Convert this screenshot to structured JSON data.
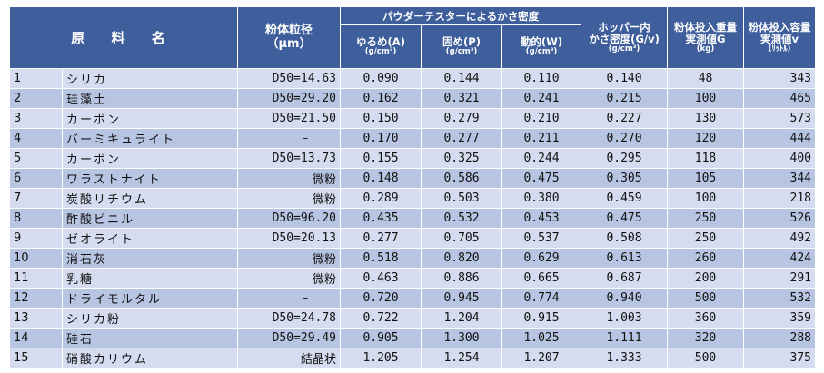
{
  "header": {
    "name": "原 料 名",
    "particle_title": "粉体粒径",
    "particle_unit": "（μm）",
    "group_title": "パウダーテスターによるかさ密度",
    "loose": "ゆるめ(A)",
    "packed": "固め(P)",
    "dynamic": "動的(W)",
    "density_unit": "(g/cm³)",
    "hopper_line1": "ホッパー内",
    "hopper_line2": "かさ密度(G/v)",
    "hopper_unit": "(g/cm³)",
    "weight_line1": "粉体投入重量",
    "weight_line2": "実測値G",
    "weight_unit": "(kg)",
    "volume_line1": "粉体投入容量",
    "volume_line2": "実測値v",
    "volume_unit": "(ﾘｯﾄﾙ)"
  },
  "rows": [
    {
      "no": "1",
      "name": "シリカ",
      "size": "D50=14.63",
      "loose": "0.090",
      "packed": "0.144",
      "dynamic": "0.110",
      "hopper": "0.140",
      "weight": "48",
      "volume": "343"
    },
    {
      "no": "2",
      "name": "珪藻土",
      "size": "D50=29.20",
      "loose": "0.162",
      "packed": "0.321",
      "dynamic": "0.241",
      "hopper": "0.215",
      "weight": "100",
      "volume": "465"
    },
    {
      "no": "3",
      "name": "カーボン",
      "size": "D50=21.50",
      "loose": "0.150",
      "packed": "0.279",
      "dynamic": "0.210",
      "hopper": "0.227",
      "weight": "130",
      "volume": "573"
    },
    {
      "no": "4",
      "name": "バーミキュライト",
      "size": "–",
      "loose": "0.170",
      "packed": "0.277",
      "dynamic": "0.211",
      "hopper": "0.270",
      "weight": "120",
      "volume": "444"
    },
    {
      "no": "5",
      "name": "カーボン",
      "size": "D50=13.73",
      "loose": "0.155",
      "packed": "0.325",
      "dynamic": "0.244",
      "hopper": "0.295",
      "weight": "118",
      "volume": "400"
    },
    {
      "no": "6",
      "name": "ワラストナイト",
      "size": "微粉",
      "loose": "0.148",
      "packed": "0.586",
      "dynamic": "0.475",
      "hopper": "0.305",
      "weight": "105",
      "volume": "344"
    },
    {
      "no": "7",
      "name": "炭酸リチウム",
      "size": "微粉",
      "loose": "0.289",
      "packed": "0.503",
      "dynamic": "0.380",
      "hopper": "0.459",
      "weight": "100",
      "volume": "218"
    },
    {
      "no": "8",
      "name": "酢酸ビニル",
      "size": "D50=96.20",
      "loose": "0.435",
      "packed": "0.532",
      "dynamic": "0.453",
      "hopper": "0.475",
      "weight": "250",
      "volume": "526"
    },
    {
      "no": "9",
      "name": "ゼオライト",
      "size": "D50=20.13",
      "loose": "0.277",
      "packed": "0.705",
      "dynamic": "0.537",
      "hopper": "0.508",
      "weight": "250",
      "volume": "492"
    },
    {
      "no": "10",
      "name": "消石灰",
      "size": "微粉",
      "loose": "0.518",
      "packed": "0.820",
      "dynamic": "0.629",
      "hopper": "0.613",
      "weight": "260",
      "volume": "424"
    },
    {
      "no": "11",
      "name": "乳糖",
      "size": "微粉",
      "loose": "0.463",
      "packed": "0.886",
      "dynamic": "0.665",
      "hopper": "0.687",
      "weight": "200",
      "volume": "291"
    },
    {
      "no": "12",
      "name": "ドライモルタル",
      "size": "–",
      "loose": "0.720",
      "packed": "0.945",
      "dynamic": "0.774",
      "hopper": "0.940",
      "weight": "500",
      "volume": "532"
    },
    {
      "no": "13",
      "name": "シリカ粉",
      "size": "D50=24.78",
      "loose": "0.722",
      "packed": "1.204",
      "dynamic": "0.915",
      "hopper": "1.003",
      "weight": "360",
      "volume": "359"
    },
    {
      "no": "14",
      "name": "硅石",
      "size": "D50=29.49",
      "loose": "0.905",
      "packed": "1.300",
      "dynamic": "1.025",
      "hopper": "1.111",
      "weight": "320",
      "volume": "288"
    },
    {
      "no": "15",
      "name": "硝酸カリウム",
      "size": "結晶状",
      "loose": "1.205",
      "packed": "1.254",
      "dynamic": "1.207",
      "hopper": "1.333",
      "weight": "500",
      "volume": "375"
    }
  ],
  "colors": {
    "header_bg": "#3f5e9c",
    "row_light": "#d5dcef",
    "row_dark": "#b8c5e2"
  }
}
